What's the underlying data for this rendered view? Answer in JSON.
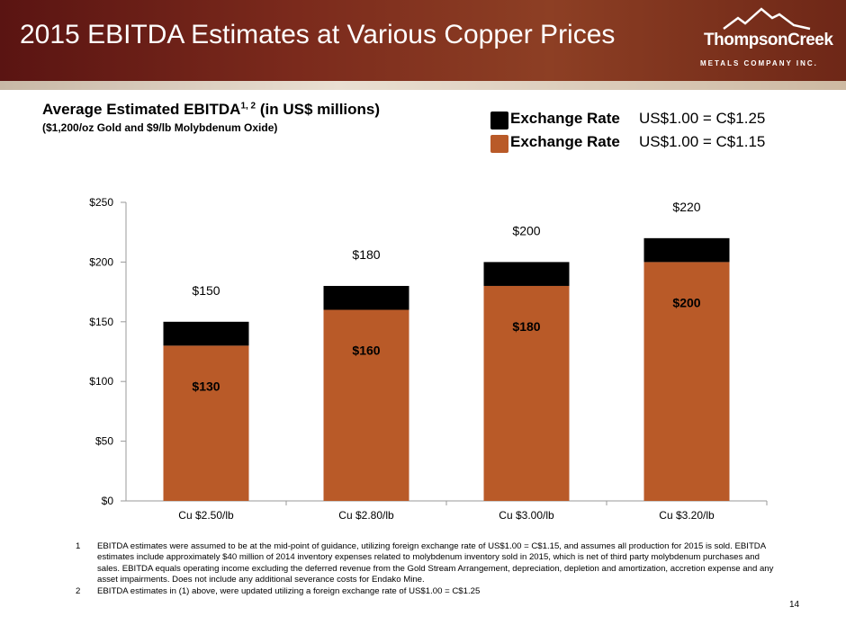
{
  "header": {
    "title": "2015 EBITDA Estimates at Various Copper Prices",
    "logo_name": "ThompsonCreek",
    "logo_sub": "METALS COMPANY INC."
  },
  "subtitle": {
    "main": "Average Estimated EBITDA",
    "superscript": "1, 2",
    "units": "(in US$ millions)",
    "assumptions": "($1,200/oz Gold and $9/lb Molybdenum Oxide)"
  },
  "legend": [
    {
      "label": "Exchange Rate",
      "value": "US$1.00 = C$1.25",
      "color": "#000000"
    },
    {
      "label": "Exchange Rate",
      "value": "US$1.00 = C$1.15",
      "color": "#b95a28"
    }
  ],
  "chart_data": {
    "type": "bar",
    "stacked": true,
    "categories": [
      "Cu $2.50/lb",
      "Cu $2.80/lb",
      "Cu $3.00/lb",
      "Cu $3.20/lb"
    ],
    "series": [
      {
        "name": "Exchange Rate US$1.00 = C$1.15",
        "values": [
          130,
          160,
          180,
          200
        ],
        "color": "#b95a28",
        "labels": [
          "$130",
          "$160",
          "$180",
          "$200"
        ]
      },
      {
        "name": "Exchange Rate US$1.00 = C$1.25 (incremental)",
        "values": [
          20,
          20,
          20,
          20
        ],
        "color": "#000000"
      }
    ],
    "totals": [
      150,
      180,
      200,
      220
    ],
    "total_labels": [
      "$150",
      "$180",
      "$200",
      "$220"
    ],
    "ylim": [
      0,
      250
    ],
    "yticks": [
      0,
      50,
      100,
      150,
      200,
      250
    ],
    "ytick_labels": [
      "$0",
      "$50",
      "$100",
      "$150",
      "$200",
      "$250"
    ],
    "xlabel": "",
    "ylabel": ""
  },
  "footnotes": [
    {
      "num": "1",
      "text": "EBITDA estimates were assumed to be at the mid-point of guidance, utilizing foreign exchange rate of US$1.00 = C$1.15, and assumes all production for 2015 is sold. EBITDA estimates include approximately $40 million of 2014 inventory expenses related to molybdenum inventory sold in 2015, which is net of third party molybdenum purchases and sales. EBITDA equals operating income excluding the deferred revenue from the Gold Stream Arrangement, depreciation, depletion and amortization, accretion expense and any asset impairments. Does not include any additional severance costs for Endako Mine."
    },
    {
      "num": "2",
      "text": "EBITDA estimates in (1) above, were updated utilizing a foreign exchange rate of US$1.00 = C$1.25"
    }
  ],
  "page_number": "14"
}
